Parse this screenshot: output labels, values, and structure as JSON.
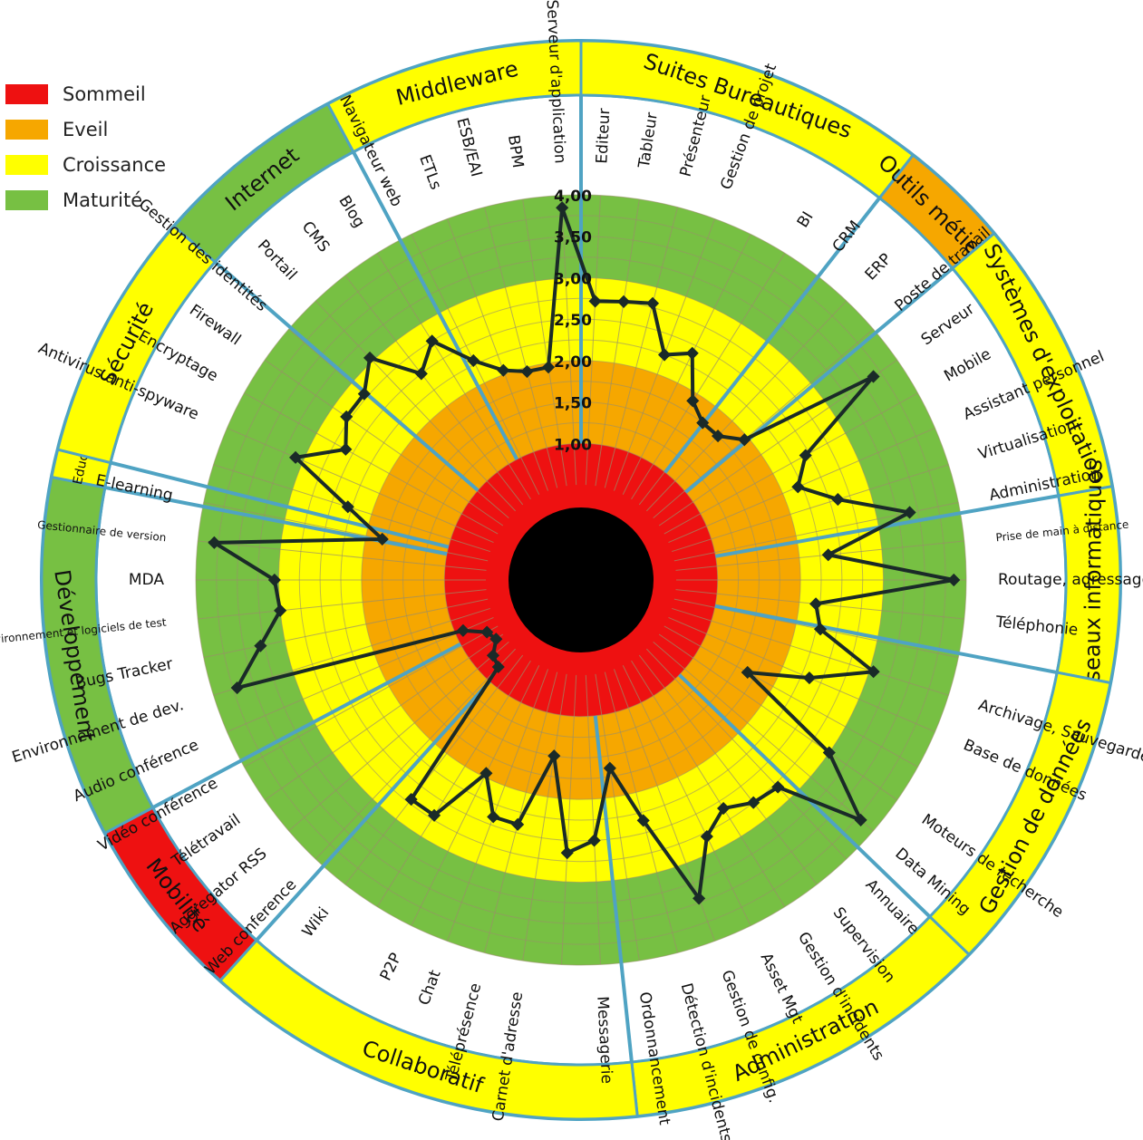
{
  "colors": {
    "sommeil": "#ee1111",
    "eveil": "#f6a700",
    "croissance": "#ffff00",
    "maturite": "#77c043",
    "separator": "#4fa3c3",
    "polyline": "#1a2a28",
    "center": "#000000"
  },
  "legend": [
    {
      "label": "Sommeil",
      "color": "#ee1111"
    },
    {
      "label": "Eveil",
      "color": "#f6a700"
    },
    {
      "label": "Croissance",
      "color": "#ffff00"
    },
    {
      "label": "Maturité",
      "color": "#77c043"
    }
  ],
  "chart_data": {
    "type": "radar",
    "rmin": 0.5,
    "rmax": 4.0,
    "bands": [
      {
        "name": "Sommeil",
        "from": 0.5,
        "to": 1.0
      },
      {
        "name": "Eveil",
        "from": 1.0,
        "to": 2.0
      },
      {
        "name": "Croissance",
        "from": 2.0,
        "to": 3.0
      },
      {
        "name": "Maturité",
        "from": 3.0,
        "to": 4.0
      }
    ],
    "radial_ticks": [
      "1,00",
      "1,50",
      "2,00",
      "2,50",
      "3,00",
      "3,50",
      "4,00"
    ],
    "radial_tick_values": [
      1.0,
      1.5,
      2.0,
      2.5,
      3.0,
      3.5,
      4.0
    ],
    "axes": [
      {
        "label": "Editeur",
        "value": 2.72
      },
      {
        "label": "Tableur",
        "value": 2.75
      },
      {
        "label": "Présenteur",
        "value": 2.8
      },
      {
        "label": "Gestion de projet",
        "value": 2.25
      },
      {
        "label": "",
        "value": 2.4
      },
      {
        "label": "BI",
        "value": 1.9
      },
      {
        "label": "CRM",
        "value": 1.75
      },
      {
        "label": "ERP",
        "value": 1.75
      },
      {
        "label": "Poste de travail",
        "value": 1.95
      },
      {
        "label": "Serveur",
        "value": 3.65
      },
      {
        "label": "Mobile",
        "value": 2.45
      },
      {
        "label": "Assistant personnel",
        "value": 2.2
      },
      {
        "label": "Virtualisation",
        "value": 2.6
      },
      {
        "label": "Administration",
        "value": 3.4
      },
      {
        "label": "Prise de main à distance",
        "value": 2.35
      },
      {
        "label": "Routage, adressage",
        "value": 3.85
      },
      {
        "label": "Téléphonie",
        "value": 2.2
      },
      {
        "label": "",
        "value": 2.3
      },
      {
        "label": "Archivage, Sauvegarde",
        "value": 3.05
      },
      {
        "label": "Base de données",
        "value": 2.35
      },
      {
        "label": "",
        "value": 1.65
      },
      {
        "label": "Moteurs de recherche",
        "value": 3.0
      },
      {
        "label": "Data Mining",
        "value": 3.8
      },
      {
        "label": "Annuaire",
        "value": 2.8
      },
      {
        "label": "Supervision",
        "value": 2.75
      },
      {
        "label": "Gestion d'incidents",
        "value": 2.6
      },
      {
        "label": "Asset Mgt",
        "value": 2.8
      },
      {
        "label": "Gestion de config.",
        "value": 3.45
      },
      {
        "label": "Détection d'incidents",
        "value": 2.35
      },
      {
        "label": "Ordonnancement",
        "value": 1.65
      },
      {
        "label": "Messagerie",
        "value": 2.5
      },
      {
        "label": "",
        "value": 2.65
      },
      {
        "label": "Carnet d'adresse",
        "value": 1.5
      },
      {
        "label": "Téléprésence",
        "value": 2.4
      },
      {
        "label": "Chat",
        "value": 2.4
      },
      {
        "label": "P2P",
        "value": 1.95
      },
      {
        "label": "",
        "value": 2.7
      },
      {
        "label": "Wiki",
        "value": 2.7
      },
      {
        "label": "Web conference",
        "value": 0.8
      },
      {
        "label": "Aggregator RSS",
        "value": 0.75
      },
      {
        "label": "Télétravail",
        "value": 0.6
      },
      {
        "label": "Vidéo conférence",
        "value": 0.65
      },
      {
        "label": "Audio conférence",
        "value": 0.9
      },
      {
        "label": "Environnement de dev.",
        "value": 3.7
      },
      {
        "label": "Bugs Tracker",
        "value": 3.3
      },
      {
        "label": "Environnement et logiciels de test",
        "value": 3.0
      },
      {
        "label": "MDA",
        "value": 3.05
      },
      {
        "label": "Gestionnaire de version",
        "value": 3.8
      },
      {
        "label": "E-learning",
        "value": 1.8
      },
      {
        "label": "",
        "value": 2.3
      },
      {
        "label": "Antivirus anti-spyware",
        "value": 3.1
      },
      {
        "label": "Encryptage",
        "value": 2.6
      },
      {
        "label": "Firewall",
        "value": 2.8
      },
      {
        "label": "Gestion des identités",
        "value": 2.8
      },
      {
        "label": "Portail",
        "value": 3.05
      },
      {
        "label": "CMS",
        "value": 2.5
      },
      {
        "label": "Blog",
        "value": 2.75
      },
      {
        "label": "Navigateur web",
        "value": 2.3
      },
      {
        "label": "ETLs",
        "value": 2.05
      },
      {
        "label": "ESB/EAI",
        "value": 1.95
      },
      {
        "label": "BPM",
        "value": 1.95
      },
      {
        "label": "Serveur d'application",
        "value": 3.85
      }
    ],
    "categories": [
      {
        "name": "Suites Bureautiques",
        "color": "#ffff00",
        "angle": [
          0,
          38
        ]
      },
      {
        "name": "Outils métiers",
        "color": "#f6a700",
        "angle": [
          38,
          50
        ]
      },
      {
        "name": "Systèmes d'exploitation",
        "color": "#ffff00",
        "angle": [
          50,
          80
        ]
      },
      {
        "name": "Réseaux informatiques",
        "color": "#ffff00",
        "angle": [
          80,
          101
        ]
      },
      {
        "name": "Gestion de données",
        "color": "#ffff00",
        "angle": [
          101,
          134
        ]
      },
      {
        "name": "Administration",
        "color": "#ffff00",
        "angle": [
          134,
          174
        ]
      },
      {
        "name": "Collaboratif",
        "color": "#ffff00",
        "angle": [
          174,
          222
        ]
      },
      {
        "name": "Mobilité",
        "color": "#ee1111",
        "angle": [
          222,
          242
        ]
      },
      {
        "name": "Développement",
        "color": "#77c043",
        "angle": [
          242,
          281
        ]
      },
      {
        "name": "Educ",
        "color": "#ffff00",
        "angle": [
          281,
          284
        ]
      },
      {
        "name": "Sécurité",
        "color": "#ffff00",
        "angle": [
          284,
          311
        ]
      },
      {
        "name": "Internet",
        "color": "#77c043",
        "angle": [
          311,
          332
        ]
      },
      {
        "name": "Middleware",
        "color": "#ffff00",
        "angle": [
          332,
          360
        ]
      }
    ]
  }
}
